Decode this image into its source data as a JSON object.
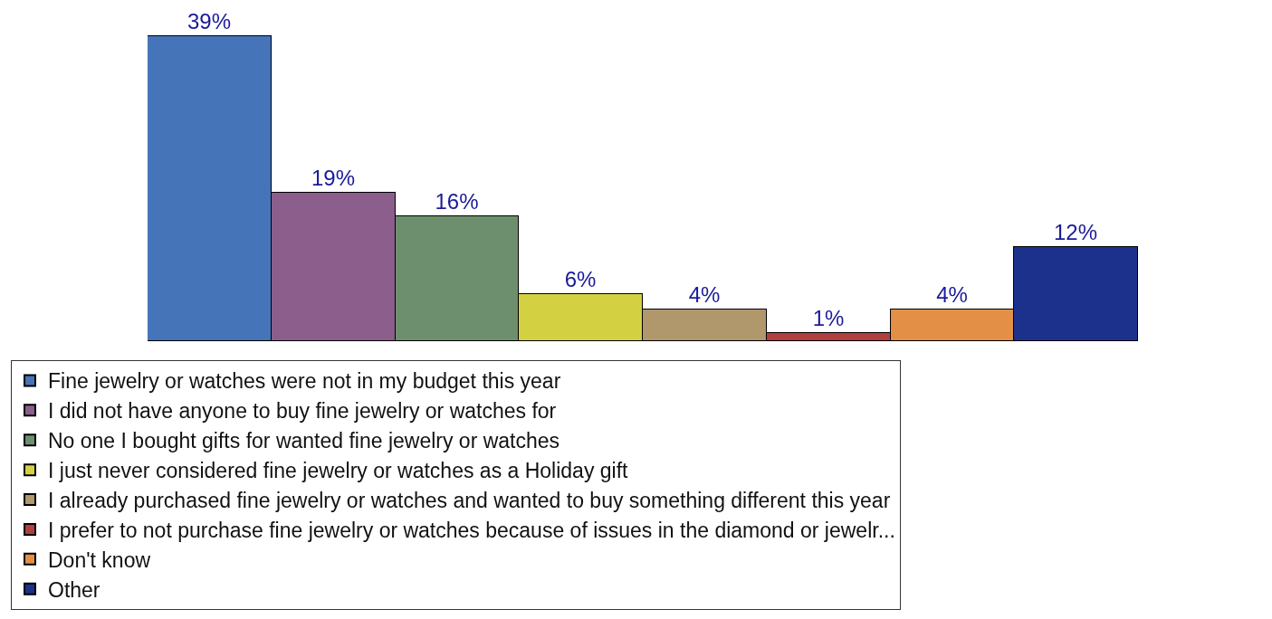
{
  "chart_data": {
    "type": "bar",
    "categories": [
      null,
      null,
      null,
      null,
      null,
      null,
      null,
      null
    ],
    "stacked": true,
    "series": [
      {
        "name": "Fine jewelry or watches were not in my budget this year",
        "color": "#4674b8",
        "values": [
          39,
          null,
          null,
          null,
          null,
          null,
          null,
          null
        ],
        "value_labels": [
          "39%",
          null,
          null,
          null,
          null,
          null,
          null,
          null
        ]
      },
      {
        "name": "I did not have anyone to buy fine jewelry or watches for",
        "color": "#8b5e8c",
        "values": [
          null,
          19,
          null,
          null,
          null,
          null,
          null,
          null
        ],
        "value_labels": [
          null,
          "19%",
          null,
          null,
          null,
          null,
          null,
          null
        ]
      },
      {
        "name": "No one I bought gifts for wanted fine jewelry or watches",
        "color": "#6e8f6e",
        "values": [
          null,
          null,
          16,
          null,
          null,
          null,
          null,
          null
        ],
        "value_labels": [
          null,
          null,
          "16%",
          null,
          null,
          null,
          null,
          null
        ]
      },
      {
        "name": "I just never considered fine jewelry or watches as a Holiday gift",
        "color": "#d3d042",
        "values": [
          null,
          null,
          null,
          6,
          null,
          null,
          null,
          null
        ],
        "value_labels": [
          null,
          null,
          null,
          "6%",
          null,
          null,
          null,
          null
        ]
      },
      {
        "name": "I already purchased fine jewelry or watches and wanted to buy something different this year",
        "color": "#b0986c",
        "values": [
          null,
          null,
          null,
          null,
          4,
          null,
          null,
          null
        ],
        "value_labels": [
          null,
          null,
          null,
          null,
          "4%",
          null,
          null,
          null
        ]
      },
      {
        "name": "I prefer to not purchase fine jewelry or watches because of issues in the diamond or jewelr...",
        "color": "#b04040",
        "values": [
          null,
          null,
          null,
          null,
          null,
          1,
          null,
          null
        ],
        "value_labels": [
          null,
          null,
          null,
          null,
          null,
          "1%",
          null,
          null
        ]
      },
      {
        "name": "Don't know",
        "color": "#e38f45",
        "values": [
          null,
          null,
          null,
          null,
          null,
          null,
          4,
          null
        ],
        "value_labels": [
          null,
          null,
          null,
          null,
          null,
          null,
          "4%",
          null
        ]
      },
      {
        "name": "Other",
        "color": "#1b318c",
        "values": [
          null,
          null,
          null,
          null,
          null,
          null,
          null,
          12
        ],
        "value_labels": [
          null,
          null,
          null,
          null,
          null,
          null,
          null,
          "12%"
        ]
      }
    ],
    "tick_labels": false,
    "legend": "bottom"
  }
}
